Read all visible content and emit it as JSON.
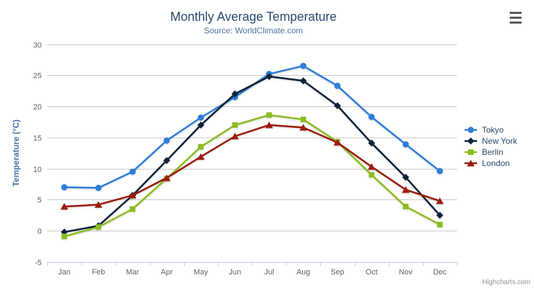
{
  "chart_data": {
    "type": "line",
    "title": "Monthly Average Temperature",
    "subtitle": "Source: WorldClimate.com",
    "xlabel": "",
    "ylabel": "Temperature (°C)",
    "ylim": [
      -5,
      30
    ],
    "ytick_step": 5,
    "grid": true,
    "legend_position": "right",
    "categories": [
      "Jan",
      "Feb",
      "Mar",
      "Apr",
      "May",
      "Jun",
      "Jul",
      "Aug",
      "Sep",
      "Oct",
      "Nov",
      "Dec"
    ],
    "series": [
      {
        "name": "Tokyo",
        "color": "#2f7ed8",
        "marker": "circle",
        "values": [
          7.0,
          6.9,
          9.5,
          14.5,
          18.2,
          21.5,
          25.2,
          26.5,
          23.3,
          18.3,
          13.9,
          9.6
        ]
      },
      {
        "name": "New York",
        "color": "#0d233a",
        "marker": "diamond",
        "values": [
          -0.2,
          0.8,
          5.7,
          11.3,
          17.0,
          22.0,
          24.8,
          24.1,
          20.1,
          14.1,
          8.6,
          2.5
        ]
      },
      {
        "name": "Berlin",
        "color": "#8bbc21",
        "marker": "square",
        "values": [
          -0.9,
          0.6,
          3.5,
          8.4,
          13.5,
          17.0,
          18.6,
          17.9,
          14.3,
          9.0,
          3.9,
          1.0
        ]
      },
      {
        "name": "London",
        "color": "#9c1c10",
        "marker": "triangle",
        "values": [
          3.9,
          4.2,
          5.7,
          8.5,
          11.9,
          15.2,
          17.0,
          16.6,
          14.2,
          10.3,
          6.6,
          4.8
        ]
      }
    ],
    "style": {
      "title_color": "#274b6d",
      "subtitle_color": "#4d759e",
      "axis_label_color": "#606060",
      "axis_title_color": "#4572a7",
      "gridline_color": "#c9c9c9",
      "axis_line_color": "#c0d0e0",
      "legend_text_color": "#274b6d"
    }
  },
  "export_menu": {
    "icon": "hamburger-menu-icon"
  },
  "credits": {
    "label": "Highcharts.com"
  }
}
